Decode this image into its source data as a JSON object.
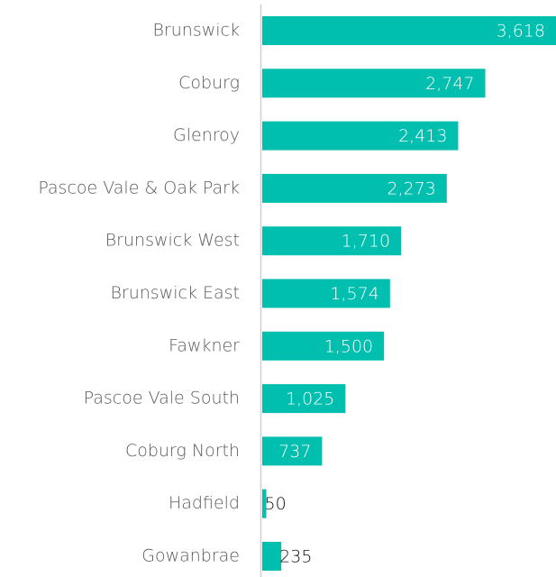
{
  "chart_data": {
    "type": "bar",
    "orientation": "horizontal",
    "categories": [
      "Brunswick",
      "Coburg",
      "Glenroy",
      "Pascoe Vale & Oak Park",
      "Brunswick West",
      "Brunswick East",
      "Fawkner",
      "Pascoe Vale South",
      "Coburg North",
      "Hadfield",
      "Gowanbrae"
    ],
    "values": [
      3618,
      2747,
      2413,
      2273,
      1710,
      1574,
      1500,
      1025,
      737,
      50,
      235
    ],
    "value_labels": [
      "3,618",
      "2,747",
      "2,413",
      "2,273",
      "1,710",
      "1,574",
      "1,500",
      "1,025",
      "737",
      "50",
      "235"
    ],
    "color": "#00bfae"
  }
}
